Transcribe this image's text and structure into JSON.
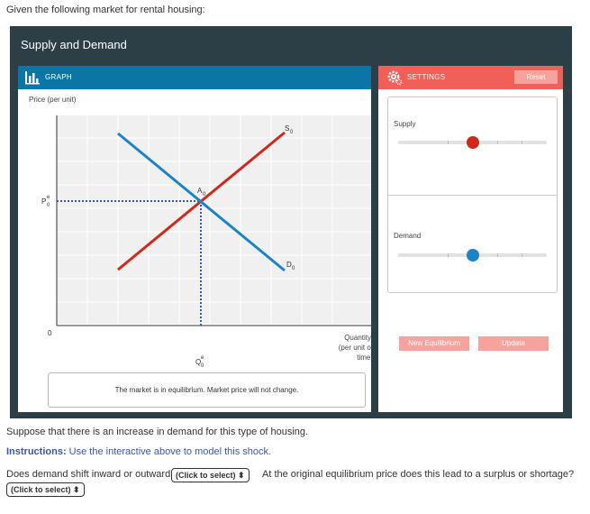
{
  "intro_text": "Given the following market for rental housing:",
  "panel": {
    "title": "Supply and Demand"
  },
  "graph": {
    "header_label": "GRAPH",
    "y_axis_label": "Price (per unit)",
    "x_axis_label_line1": "Quantity",
    "x_axis_label_line2": "(per unit of",
    "x_axis_label_line3": "time)",
    "origin_label": "0",
    "price_label": "P",
    "price_sup": "e",
    "price_sub": "0",
    "qty_label": "Q",
    "qty_sup": "e",
    "qty_sub": "0",
    "supply_label": "S",
    "supply_sub": "0",
    "demand_label": "D",
    "demand_sub": "0",
    "eq_label": "A",
    "eq_sub": "0",
    "supply_color": "#d0281b",
    "demand_color": "#1b84c8",
    "status_text": "The market is in equilibrium. Market price will not change."
  },
  "settings": {
    "header_label": "SETTINGS",
    "reset_label": "Reset",
    "supply_label": "Supply",
    "demand_label": "Demand",
    "supply_level": 0.5,
    "demand_level": 0.5,
    "new_equilibrium_label": "New Equilibrium",
    "update_label": "Update",
    "accent_color": "#f06059"
  },
  "question": {
    "scenario": "Suppose that there is an increase in demand for this type of housing.",
    "instructions_prefix": "Instructions:",
    "instructions_text": " Use the interactive above to model this shock.",
    "q_shift": "Does demand shift inward or outward?",
    "q_shift_select": "(Click to select) ⬍",
    "q_surplus": "At the original equilibrium price does this lead to a surplus or shortage?",
    "q_surplus_select": "(Click to select) ⬍"
  }
}
